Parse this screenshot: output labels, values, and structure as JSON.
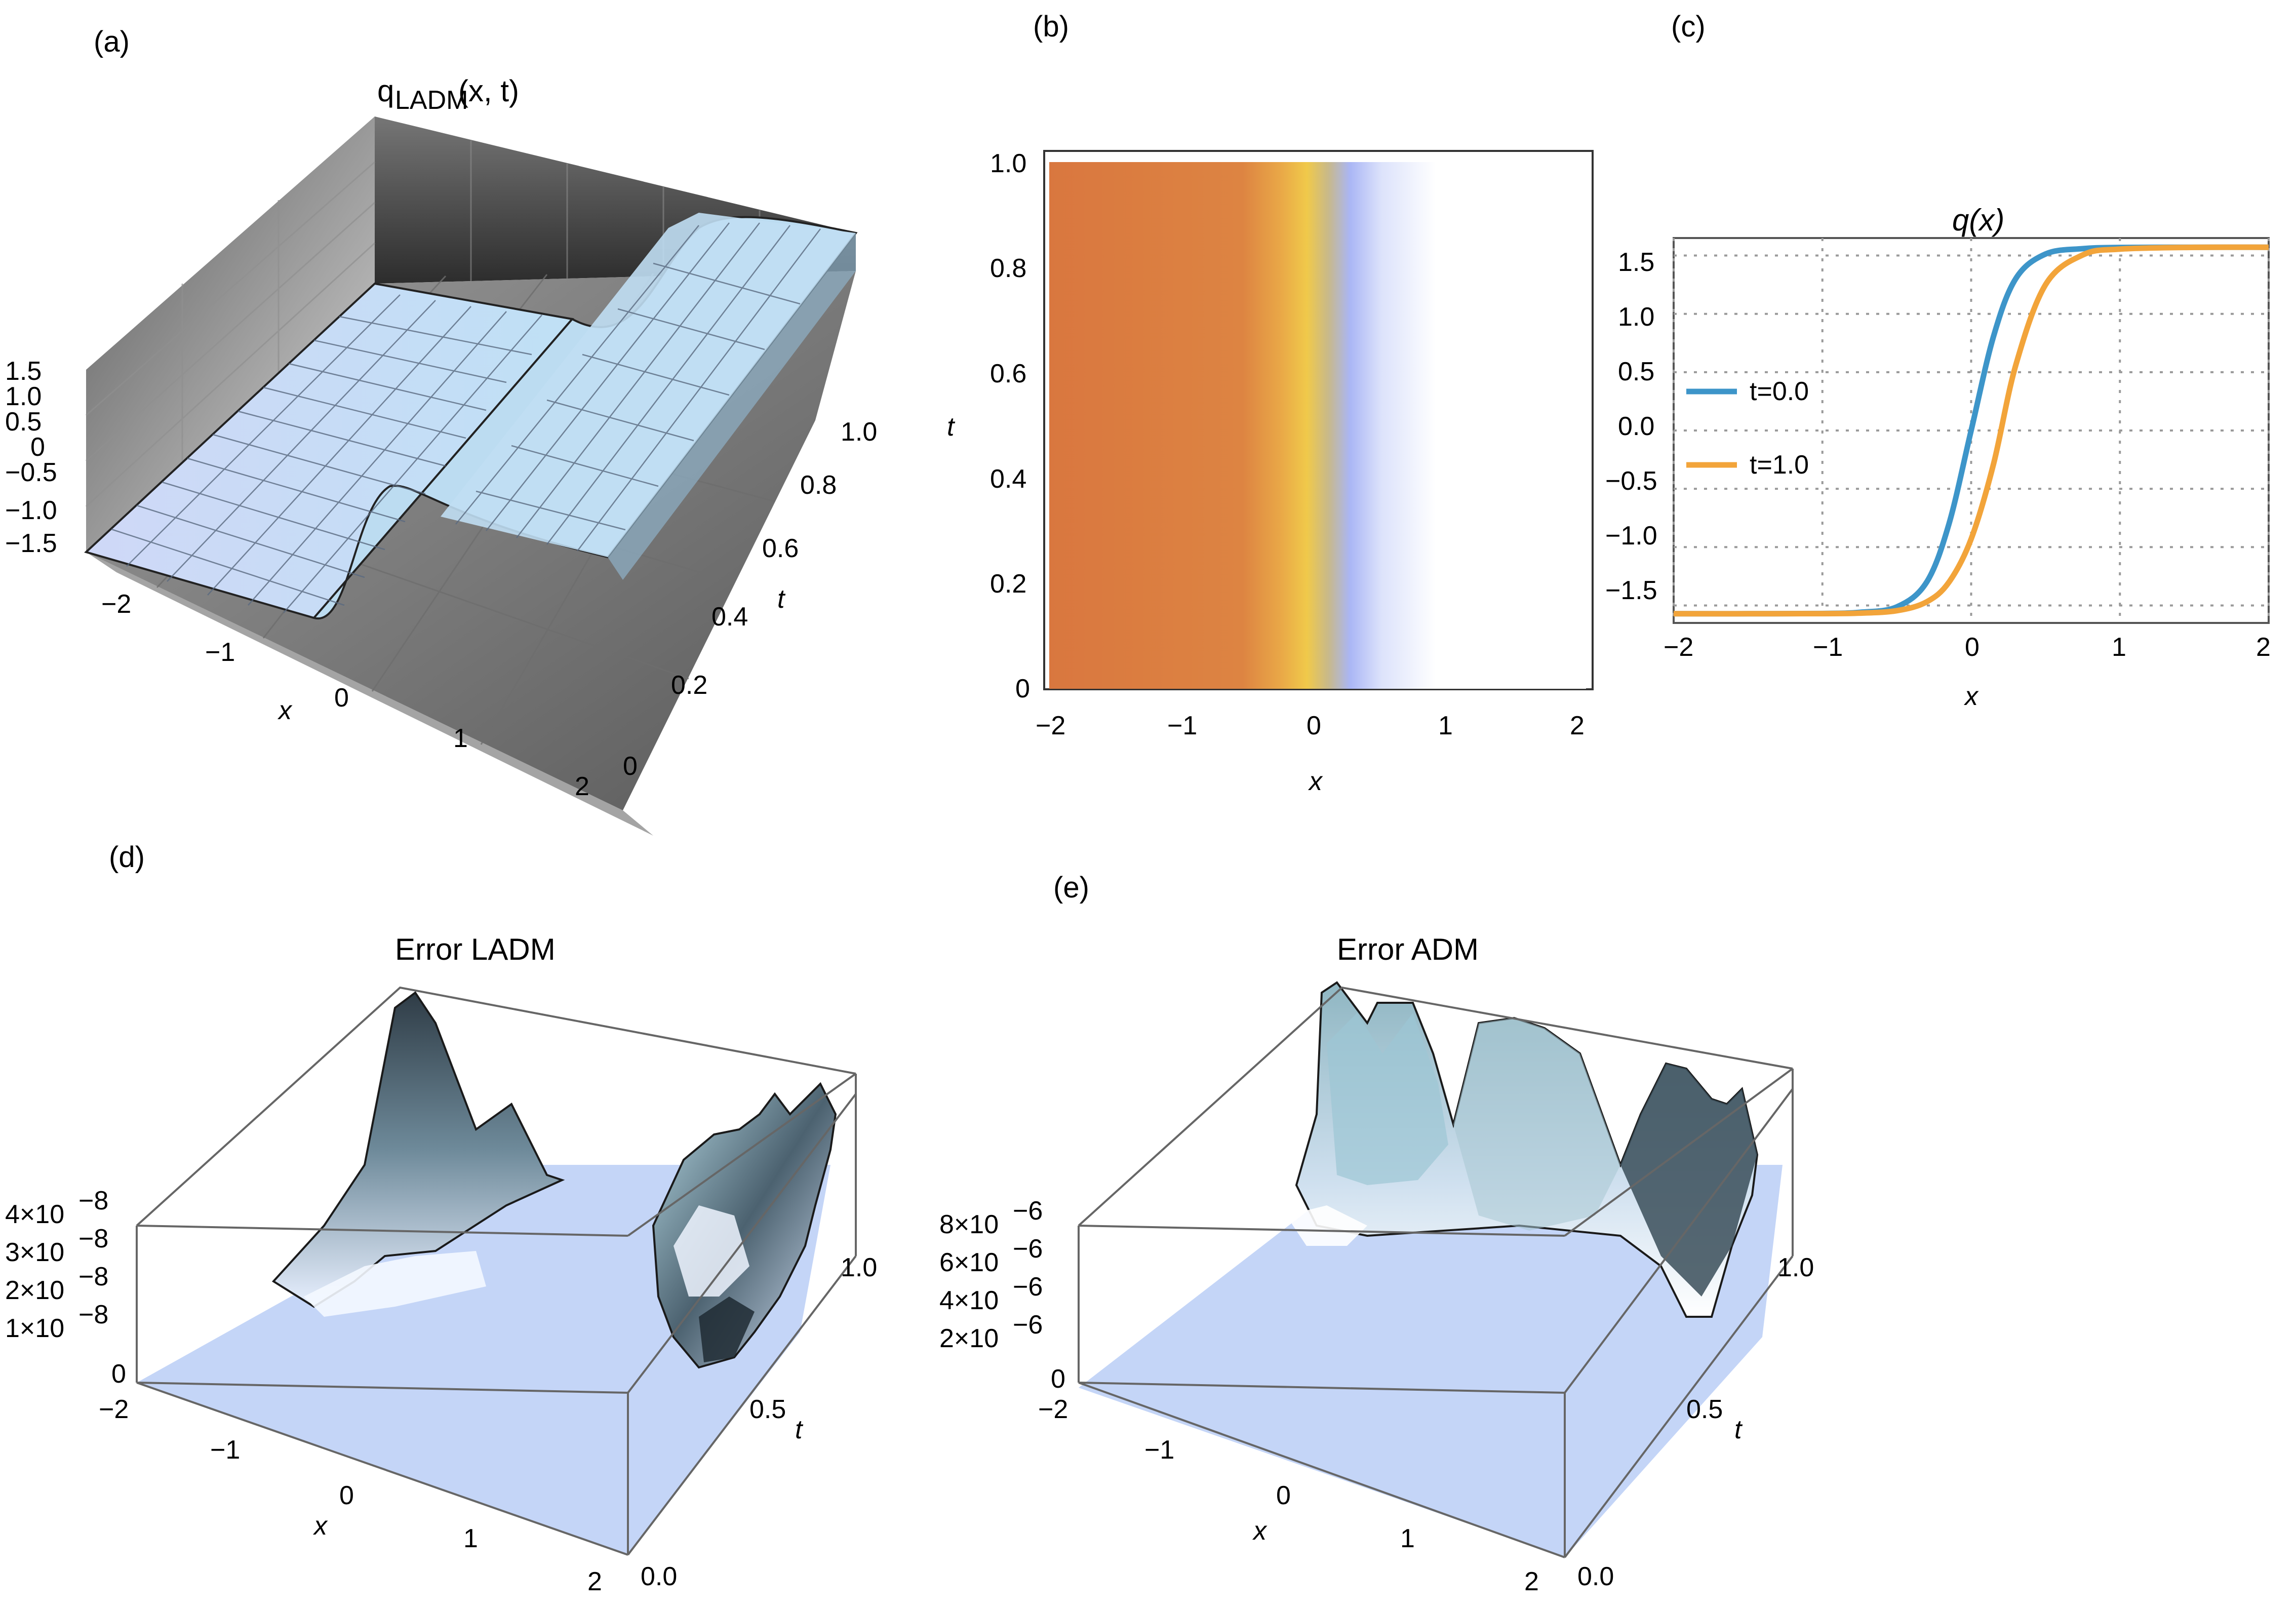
{
  "panels": {
    "a": {
      "label": "(a)",
      "title": "qLADM(x, t)",
      "title_main": "q",
      "title_sub": "LADM",
      "title_args": "(x, t)",
      "xlabel": "x",
      "tlabel": "t",
      "z_ticks": [
        "1.5",
        "1.0",
        "0.5",
        "0",
        "−0.5",
        "−1.0",
        "−1.5"
      ],
      "x_ticks": [
        "−2",
        "−1",
        "0",
        "1",
        "2"
      ],
      "t_ticks": [
        "0",
        "0.2",
        "0.4",
        "0.6",
        "0.8",
        "1.0"
      ]
    },
    "b": {
      "label": "(b)",
      "xlabel": "x",
      "ylabel": "t",
      "x_ticks": [
        "−2",
        "−1",
        "0",
        "1",
        "2"
      ],
      "y_ticks": [
        "0",
        "0.2",
        "0.4",
        "0.6",
        "0.8",
        "1.0"
      ]
    },
    "c": {
      "label": "(c)",
      "title": "q(x)",
      "xlabel": "x",
      "x_ticks": [
        "−2",
        "−1",
        "0",
        "1",
        "2"
      ],
      "y_ticks": [
        "1.5",
        "1.0",
        "0.5",
        "0.0",
        "−0.5",
        "−1.0",
        "−1.5"
      ],
      "legend": [
        "t=0.0",
        "t=1.0"
      ]
    },
    "d": {
      "label": "(d)",
      "title": "Error LADM",
      "xlabel": "x",
      "tlabel": "t",
      "z_ticks": [
        "4×10",
        "3×10",
        "2×10",
        "1×10",
        "0"
      ],
      "z_exp": "−8",
      "x_ticks": [
        "−2",
        "−1",
        "0",
        "1",
        "2"
      ],
      "t_ticks": [
        "0.0",
        "0.5",
        "1.0"
      ]
    },
    "e": {
      "label": "(e)",
      "title": "Error ADM",
      "xlabel": "x",
      "tlabel": "t",
      "z_ticks": [
        "8×10",
        "6×10",
        "4×10",
        "2×10",
        "0"
      ],
      "z_exp": "−6",
      "x_ticks": [
        "−2",
        "−1",
        "0",
        "1",
        "2"
      ],
      "t_ticks": [
        "0.0",
        "0.5",
        "1.0"
      ]
    }
  },
  "colors": {
    "blue_line": "#3d95c9",
    "orange_line": "#f2a43a",
    "heat_orange": "#d9773f",
    "heat_yellow": "#f0c94a",
    "heat_blue": "#aab6f5",
    "surface": "#c9ddf5"
  },
  "chart_data": [
    {
      "panel": "a",
      "type": "surface3d",
      "title": "qLADM(x, t)",
      "xlabel": "x",
      "ylabel": "t",
      "xlim": [
        -2,
        2
      ],
      "ylim": [
        0,
        1
      ],
      "zlim": [
        -1.57,
        1.57
      ],
      "description_values": {
        "left_level": -1.5708,
        "right_level": 1.5708
      }
    },
    {
      "panel": "b",
      "type": "heatmap",
      "xlabel": "x",
      "ylabel": "t",
      "xlim": [
        -2,
        2
      ],
      "ylim": [
        0,
        1
      ]
    },
    {
      "panel": "c",
      "type": "line",
      "title": "q(x)",
      "xlabel": "x",
      "xlim": [
        -2,
        2
      ],
      "ylim": [
        -1.65,
        1.65
      ],
      "grid": true,
      "legend_position": "left",
      "x": [
        -2.0,
        -1.5,
        -1.0,
        -0.75,
        -0.5,
        -0.3,
        -0.15,
        0.0,
        0.15,
        0.3,
        0.5,
        0.75,
        1.0,
        1.5,
        2.0
      ],
      "series": [
        {
          "name": "t=0.0",
          "values": [
            -1.571,
            -1.571,
            -1.569,
            -1.559,
            -1.513,
            -1.302,
            -0.805,
            0.0,
            0.805,
            1.302,
            1.513,
            1.559,
            1.569,
            1.571,
            1.571
          ]
        },
        {
          "name": "t=1.0",
          "values": [
            -1.571,
            -1.571,
            -1.57,
            -1.566,
            -1.545,
            -1.47,
            -1.302,
            -0.93,
            -0.29,
            0.56,
            1.25,
            1.505,
            1.555,
            1.57,
            1.571
          ]
        }
      ]
    },
    {
      "panel": "d",
      "type": "surface3d",
      "title": "Error LADM",
      "xlabel": "x",
      "ylabel": "t",
      "xlim": [
        -2,
        2
      ],
      "ylim": [
        0,
        1
      ],
      "zlim": [
        0,
        4.5e-08
      ]
    },
    {
      "panel": "e",
      "type": "surface3d",
      "title": "Error ADM",
      "xlabel": "x",
      "ylabel": "t",
      "xlim": [
        -2,
        2
      ],
      "ylim": [
        0,
        1
      ],
      "zlim": [
        0,
        9e-06
      ]
    }
  ]
}
